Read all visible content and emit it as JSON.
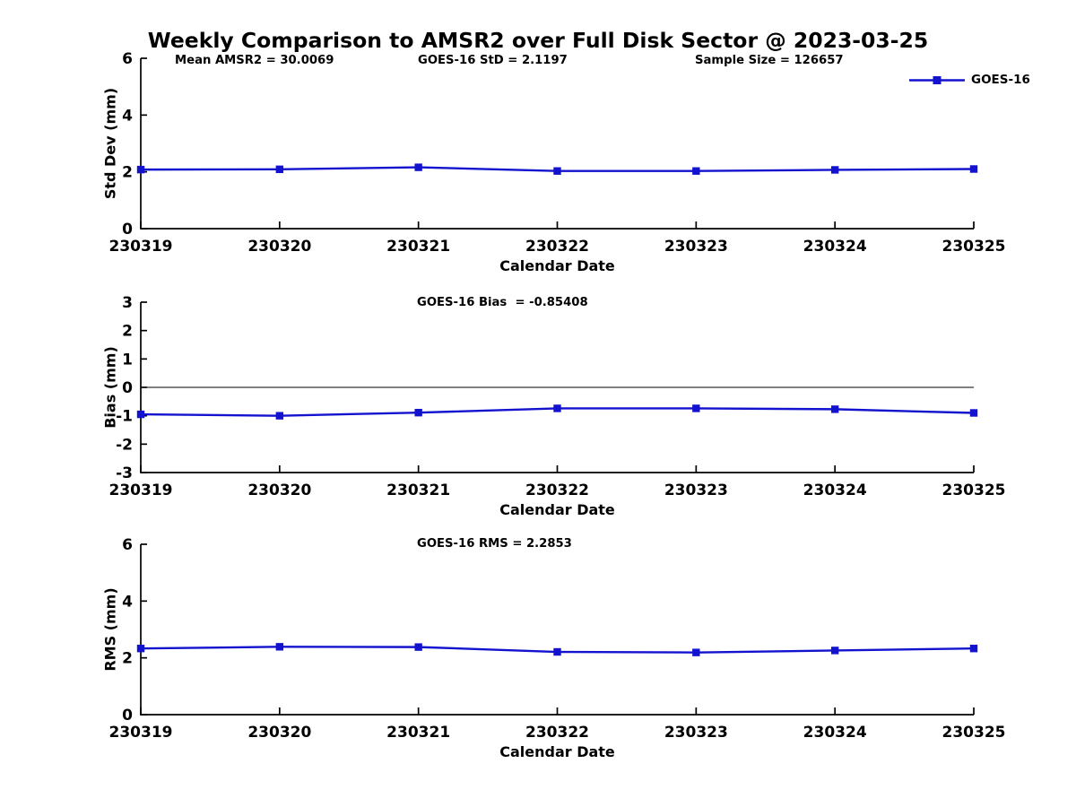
{
  "title": "Weekly Comparison to AMSR2 over Full Disk Sector @ 2023-03-25",
  "xlabel": "Calendar Date",
  "legend": {
    "label": "GOES-16"
  },
  "colors": {
    "line": "#1313cf",
    "axis": "#000000",
    "refline": "#000000"
  },
  "categories": [
    "230319",
    "230320",
    "230321",
    "230322",
    "230323",
    "230324",
    "230325"
  ],
  "chart_data": [
    {
      "type": "line",
      "title": "",
      "ylabel": "Std Dev (mm)",
      "xlabel": "Calendar Date",
      "ylim": [
        0,
        6
      ],
      "yticks": [
        0,
        2,
        4,
        6
      ],
      "categories": [
        "230319",
        "230320",
        "230321",
        "230322",
        "230323",
        "230324",
        "230325"
      ],
      "series": [
        {
          "name": "GOES-16",
          "marker": "square",
          "values": [
            2.08,
            2.09,
            2.16,
            2.03,
            2.03,
            2.07,
            2.1
          ]
        }
      ],
      "legend_position": "top-right",
      "grid": false,
      "annotations": [
        "Mean AMSR2 = 30.0069",
        "GOES-16 StD = 2.1197",
        "Sample Size = 126657"
      ]
    },
    {
      "type": "line",
      "title": "",
      "ylabel": "Bias (mm)",
      "xlabel": "Calendar Date",
      "ylim": [
        -3,
        3
      ],
      "yticks": [
        -3,
        -2,
        -1,
        0,
        1,
        2,
        3
      ],
      "refline": 0,
      "categories": [
        "230319",
        "230320",
        "230321",
        "230322",
        "230323",
        "230324",
        "230325"
      ],
      "series": [
        {
          "name": "GOES-16",
          "marker": "square",
          "values": [
            -0.95,
            -1.0,
            -0.89,
            -0.74,
            -0.74,
            -0.77,
            -0.9
          ]
        }
      ],
      "grid": false,
      "annotations": [
        "GOES-16 Bias  = -0.85408"
      ]
    },
    {
      "type": "line",
      "title": "",
      "ylabel": "RMS (mm)",
      "xlabel": "Calendar Date",
      "ylim": [
        0,
        6
      ],
      "yticks": [
        0,
        2,
        4,
        6
      ],
      "categories": [
        "230319",
        "230320",
        "230321",
        "230322",
        "230323",
        "230324",
        "230325"
      ],
      "series": [
        {
          "name": "GOES-16",
          "marker": "square",
          "values": [
            2.33,
            2.39,
            2.38,
            2.21,
            2.19,
            2.26,
            2.33
          ]
        }
      ],
      "grid": false,
      "annotations": [
        "GOES-16 RMS = 2.2853"
      ]
    }
  ]
}
